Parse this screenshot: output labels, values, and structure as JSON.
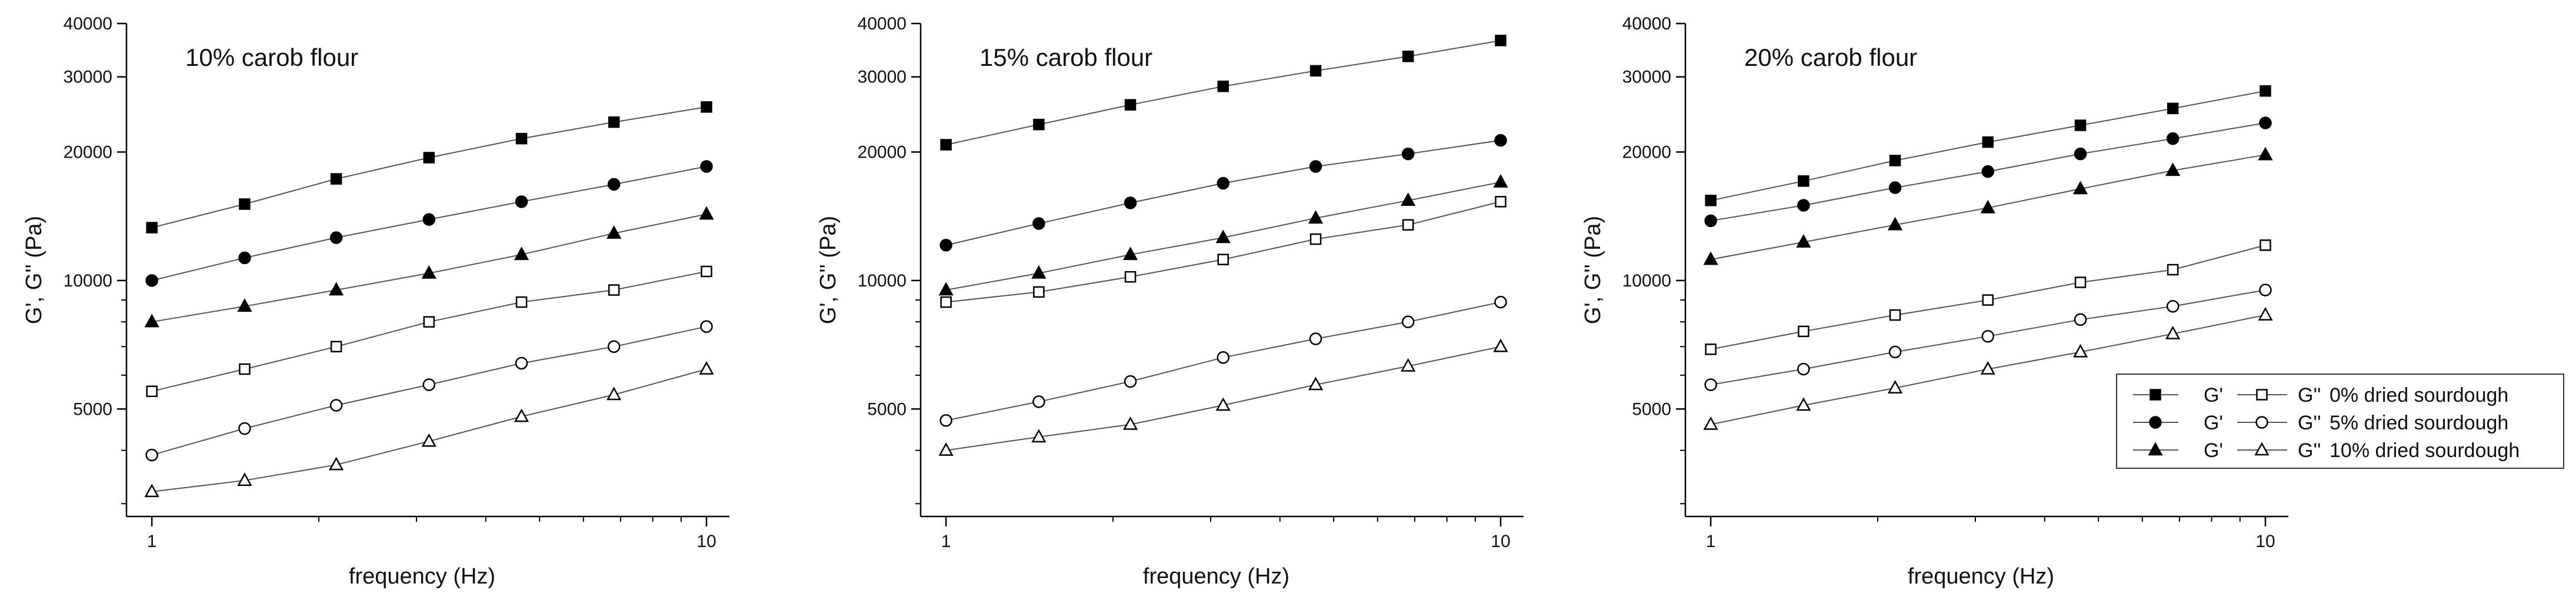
{
  "legend": {
    "entries": [
      {
        "g1_label": "G'",
        "g2_label": "G''",
        "label": "0% dried sourdough",
        "marker": "square"
      },
      {
        "g1_label": "G'",
        "g2_label": "G''",
        "label": "5% dried sourdough",
        "marker": "circle"
      },
      {
        "g1_label": "G'",
        "g2_label": "G''",
        "label": "10% dried sourdough",
        "marker": "triangle"
      }
    ]
  },
  "chart_data": [
    {
      "type": "line",
      "title": "10% carob flour",
      "xlabel": "frequency (Hz)",
      "ylabel": "G', G'' (Pa)",
      "xscale": "log",
      "yscale": "log",
      "xlim": [
        0.9,
        11
      ],
      "ylim": [
        2800,
        40000
      ],
      "xticks": [
        1,
        10
      ],
      "yticks": [
        5000,
        10000,
        20000,
        30000,
        40000
      ],
      "grid": false,
      "x": [
        1,
        1.47,
        2.15,
        3.16,
        4.64,
        6.81,
        10
      ],
      "series": [
        {
          "name": "G' 0% dried sourdough",
          "marker": "square",
          "filled": true,
          "values": [
            13300,
            15100,
            17300,
            19400,
            21500,
            23500,
            25500
          ]
        },
        {
          "name": "G'' 0% dried sourdough",
          "marker": "square",
          "filled": false,
          "values": [
            5500,
            6200,
            7000,
            8000,
            8900,
            9500,
            10500
          ]
        },
        {
          "name": "G' 5% dried sourdough",
          "marker": "circle",
          "filled": true,
          "values": [
            10000,
            11300,
            12600,
            13900,
            15300,
            16800,
            18500
          ]
        },
        {
          "name": "G'' 5% dried sourdough",
          "marker": "circle",
          "filled": false,
          "values": [
            3900,
            4500,
            5100,
            5700,
            6400,
            7000,
            7800
          ]
        },
        {
          "name": "G' 10% dried sourdough",
          "marker": "triangle",
          "filled": true,
          "values": [
            8000,
            8700,
            9500,
            10400,
            11500,
            12900,
            14300
          ]
        },
        {
          "name": "G'' 10% dried sourdough",
          "marker": "triangle",
          "filled": false,
          "values": [
            3200,
            3400,
            3700,
            4200,
            4800,
            5400,
            6200
          ]
        }
      ]
    },
    {
      "type": "line",
      "title": "15% carob flour",
      "xlabel": "frequency (Hz)",
      "ylabel": "G', G'' (Pa)",
      "xscale": "log",
      "yscale": "log",
      "xlim": [
        0.9,
        11
      ],
      "ylim": [
        2800,
        40000
      ],
      "xticks": [
        1,
        10
      ],
      "yticks": [
        5000,
        10000,
        20000,
        30000,
        40000
      ],
      "grid": false,
      "x": [
        1,
        1.47,
        2.15,
        3.16,
        4.64,
        6.81,
        10
      ],
      "series": [
        {
          "name": "G' 0% dried sourdough",
          "marker": "square",
          "filled": true,
          "values": [
            20800,
            23200,
            25800,
            28500,
            31000,
            33500,
            36500
          ]
        },
        {
          "name": "G'' 0% dried sourdough",
          "marker": "square",
          "filled": false,
          "values": [
            8900,
            9400,
            10200,
            11200,
            12500,
            13500,
            15300
          ]
        },
        {
          "name": "G' 5% dried sourdough",
          "marker": "circle",
          "filled": true,
          "values": [
            12100,
            13600,
            15200,
            16900,
            18500,
            19800,
            21300
          ]
        },
        {
          "name": "G'' 5% dried sourdough",
          "marker": "circle",
          "filled": false,
          "values": [
            4700,
            5200,
            5800,
            6600,
            7300,
            8000,
            8900
          ]
        },
        {
          "name": "G' 10% dried sourdough",
          "marker": "triangle",
          "filled": true,
          "values": [
            9500,
            10400,
            11500,
            12600,
            14000,
            15400,
            17000
          ]
        },
        {
          "name": "G'' 10% dried sourdough",
          "marker": "triangle",
          "filled": false,
          "values": [
            4000,
            4300,
            4600,
            5100,
            5700,
            6300,
            7000
          ]
        }
      ]
    },
    {
      "type": "line",
      "title": "20% carob flour",
      "xlabel": "frequency (Hz)",
      "ylabel": "G', G'' (Pa)",
      "xscale": "log",
      "yscale": "log",
      "xlim": [
        0.9,
        11
      ],
      "ylim": [
        2800,
        40000
      ],
      "xticks": [
        1,
        10
      ],
      "yticks": [
        5000,
        10000,
        20000,
        30000,
        40000
      ],
      "grid": false,
      "legend_position": "bottom-right",
      "x": [
        1,
        1.47,
        2.15,
        3.16,
        4.64,
        6.81,
        10
      ],
      "series": [
        {
          "name": "G' 0% dried sourdough",
          "marker": "square",
          "filled": true,
          "values": [
            15400,
            17100,
            19100,
            21100,
            23100,
            25300,
            27800
          ]
        },
        {
          "name": "G'' 0% dried sourdough",
          "marker": "square",
          "filled": false,
          "values": [
            6900,
            7600,
            8300,
            9000,
            9900,
            10600,
            12100
          ]
        },
        {
          "name": "G' 5% dried sourdough",
          "marker": "circle",
          "filled": true,
          "values": [
            13800,
            15000,
            16500,
            18000,
            19800,
            21500,
            23400
          ]
        },
        {
          "name": "G'' 5% dried sourdough",
          "marker": "circle",
          "filled": false,
          "values": [
            5700,
            6200,
            6800,
            7400,
            8100,
            8700,
            9500
          ]
        },
        {
          "name": "G' 10% dried sourdough",
          "marker": "triangle",
          "filled": true,
          "values": [
            11200,
            12300,
            13500,
            14800,
            16400,
            18100,
            19700
          ]
        },
        {
          "name": "G'' 10% dried sourdough",
          "marker": "triangle",
          "filled": false,
          "values": [
            4600,
            5100,
            5600,
            6200,
            6800,
            7500,
            8300
          ]
        }
      ]
    }
  ]
}
